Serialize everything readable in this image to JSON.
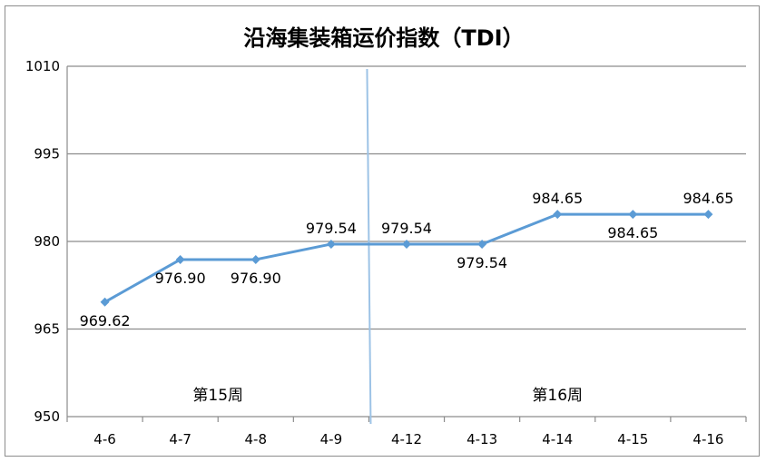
{
  "chart_data": {
    "type": "line",
    "title": "沿海集装箱运价指数（TDI）",
    "categories": [
      "4-6",
      "4-7",
      "4-8",
      "4-9",
      "4-12",
      "4-13",
      "4-14",
      "4-15",
      "4-16"
    ],
    "series": [
      {
        "values": [
          969.62,
          976.9,
          976.9,
          979.54,
          979.54,
          979.54,
          984.65,
          984.65,
          984.65
        ]
      }
    ],
    "value_labels": [
      "969.62",
      "976.90",
      "976.90",
      "979.54",
      "979.54",
      "979.54",
      "984.65",
      "984.65",
      "984.65"
    ],
    "ylim": [
      950,
      1010
    ],
    "yticks": [
      950,
      965,
      980,
      995,
      1010
    ],
    "ytick_labels": [
      "950",
      "965",
      "980",
      "995",
      "1010"
    ],
    "grid": true,
    "annotations": [
      {
        "text": "第15周",
        "between": [
          "4-6",
          "4-9"
        ]
      },
      {
        "text": "第16周",
        "between": [
          "4-12",
          "4-16"
        ]
      }
    ],
    "divider_after": "4-9",
    "colors": {
      "line": "#5b9bd5",
      "grid": "#8c8c8c",
      "divider": "#9dc3e6"
    }
  }
}
